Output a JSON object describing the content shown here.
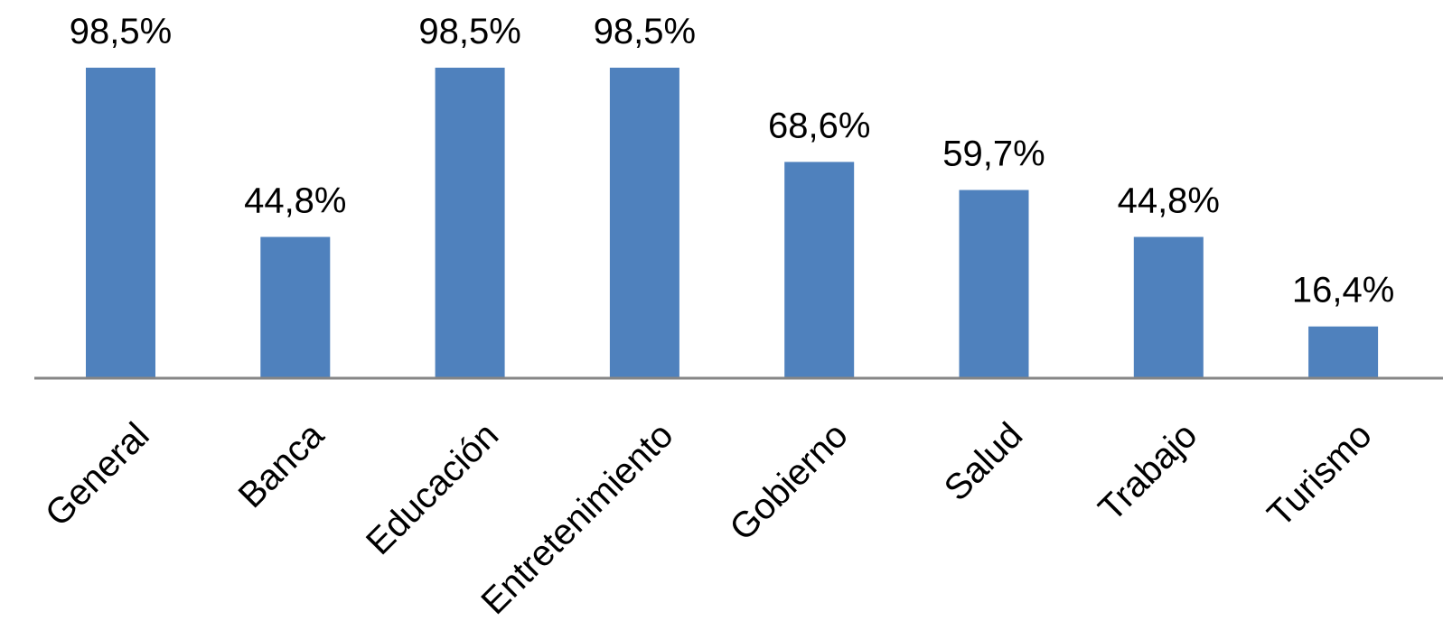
{
  "chart_data": {
    "type": "bar",
    "categories": [
      "General",
      "Banca",
      "Educación",
      "Entretenimiento",
      "Gobierno",
      "Salud",
      "Trabajo",
      "Turismo"
    ],
    "values": [
      98.5,
      44.8,
      98.5,
      98.5,
      68.6,
      59.7,
      44.8,
      16.4
    ],
    "data_labels": [
      "98,5%",
      "44,8%",
      "98,5%",
      "98,5%",
      "68,6%",
      "59,7%",
      "44,8%",
      "16,4%"
    ],
    "unit": "%",
    "ylim": [
      0,
      100
    ],
    "grid": false,
    "legend": "none",
    "bar_color": "#4f81bd",
    "axis_color": "#868686"
  }
}
